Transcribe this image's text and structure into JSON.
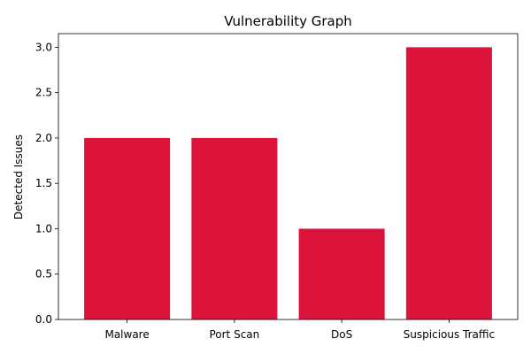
{
  "chart_data": {
    "type": "bar",
    "title": "Vulnerability Graph",
    "xlabel": "",
    "ylabel": "Detected Issues",
    "categories": [
      "Malware",
      "Port Scan",
      "DoS",
      "Suspicious Traffic"
    ],
    "values": [
      2,
      2,
      1,
      3
    ],
    "ylim": [
      0,
      3.15
    ],
    "yticks": [
      "0.0",
      "0.5",
      "1.0",
      "1.5",
      "2.0",
      "2.5",
      "3.0"
    ],
    "grid": false,
    "bar_color": "#DC143C"
  }
}
